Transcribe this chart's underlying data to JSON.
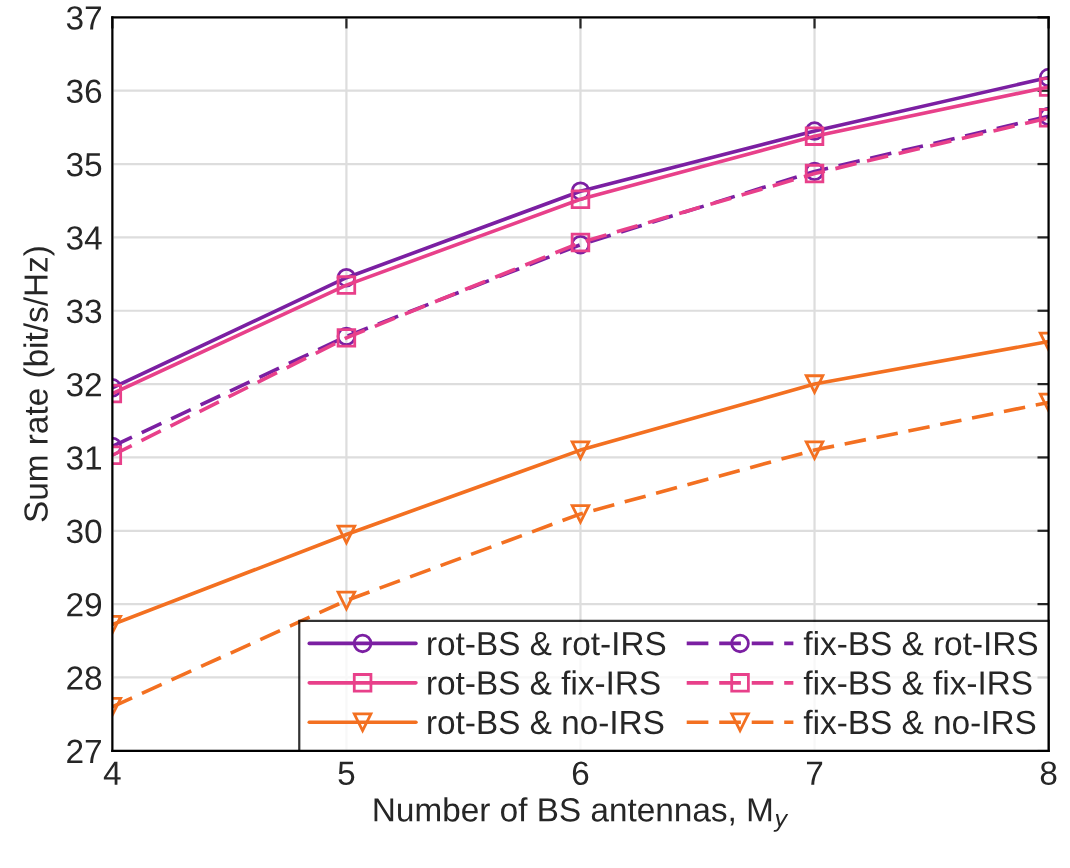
{
  "chart_data": {
    "type": "line",
    "xlabel": "Number of BS antennas, M$_{y}$",
    "ylabel": "Sum rate (bit/s/Hz)",
    "x": [
      4,
      5,
      6,
      7,
      8
    ],
    "xlim": [
      4,
      8
    ],
    "xticks": [
      4,
      5,
      6,
      7,
      8
    ],
    "ylim": [
      27,
      37
    ],
    "yticks": [
      27,
      28,
      29,
      30,
      31,
      32,
      33,
      34,
      35,
      36,
      37
    ],
    "grid": true,
    "legend": "bottom right",
    "series": [
      {
        "name": "rot-BS & rot-IRS",
        "color": "#7b1fa2",
        "marker": "circle",
        "line_style": "solid",
        "values": [
          31.95,
          33.45,
          34.63,
          35.45,
          36.18
        ]
      },
      {
        "name": "rot-BS & fix-IRS",
        "color": "#e8408a",
        "marker": "square",
        "line_style": "solid",
        "values": [
          31.87,
          33.35,
          34.52,
          35.38,
          36.05
        ]
      },
      {
        "name": "rot-BS & no-IRS",
        "color": "#f37021",
        "marker": "triangle",
        "line_style": "solid",
        "values": [
          28.72,
          29.95,
          31.1,
          32.0,
          32.58
        ]
      },
      {
        "name": "fix-BS & rot-IRS",
        "color": "#7b1fa2",
        "marker": "circle",
        "line_style": "dashed",
        "values": [
          31.15,
          32.65,
          33.9,
          34.9,
          35.65
        ]
      },
      {
        "name": "fix-BS & fix-IRS",
        "color": "#e8408a",
        "marker": "square",
        "line_style": "dashed",
        "values": [
          31.03,
          32.63,
          33.93,
          34.87,
          35.63
        ]
      },
      {
        "name": "fix-BS & no-IRS",
        "color": "#f37021",
        "marker": "triangle",
        "line_style": "dashed",
        "values": [
          27.6,
          29.05,
          30.23,
          31.1,
          31.75
        ]
      }
    ]
  }
}
